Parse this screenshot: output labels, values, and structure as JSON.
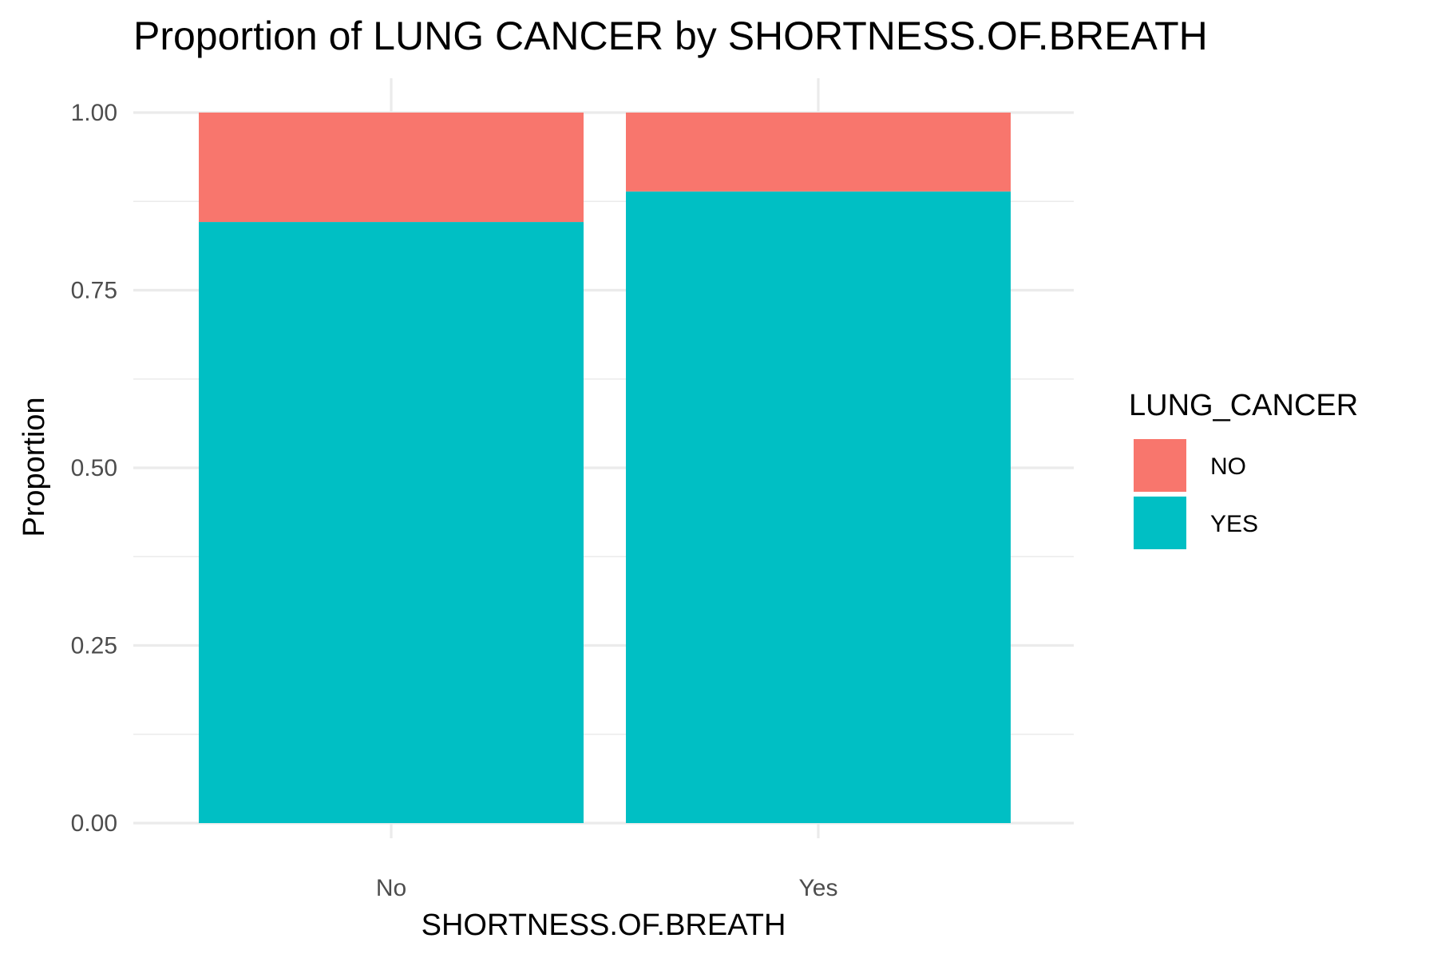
{
  "chart_data": {
    "type": "bar",
    "stacked": true,
    "title": "Proportion of LUNG CANCER by SHORTNESS.OF.BREATH",
    "xlabel": "SHORTNESS.OF.BREATH",
    "ylabel": "Proportion",
    "categories": [
      "No",
      "Yes"
    ],
    "ylim": [
      0,
      1
    ],
    "yticks": [
      0,
      0.25,
      0.5,
      0.75,
      1
    ],
    "ytick_labels": [
      "0.00",
      "0.25",
      "0.50",
      "0.75",
      "1.00"
    ],
    "grid": true,
    "legend": {
      "title": "LUNG_CANCER",
      "position": "right"
    },
    "series": [
      {
        "name": "YES",
        "color": "#00BFC4",
        "values": [
          0.846,
          0.889
        ]
      },
      {
        "name": "NO",
        "color": "#F8766D",
        "values": [
          0.154,
          0.111
        ]
      }
    ],
    "legend_order": [
      "NO",
      "YES"
    ]
  }
}
